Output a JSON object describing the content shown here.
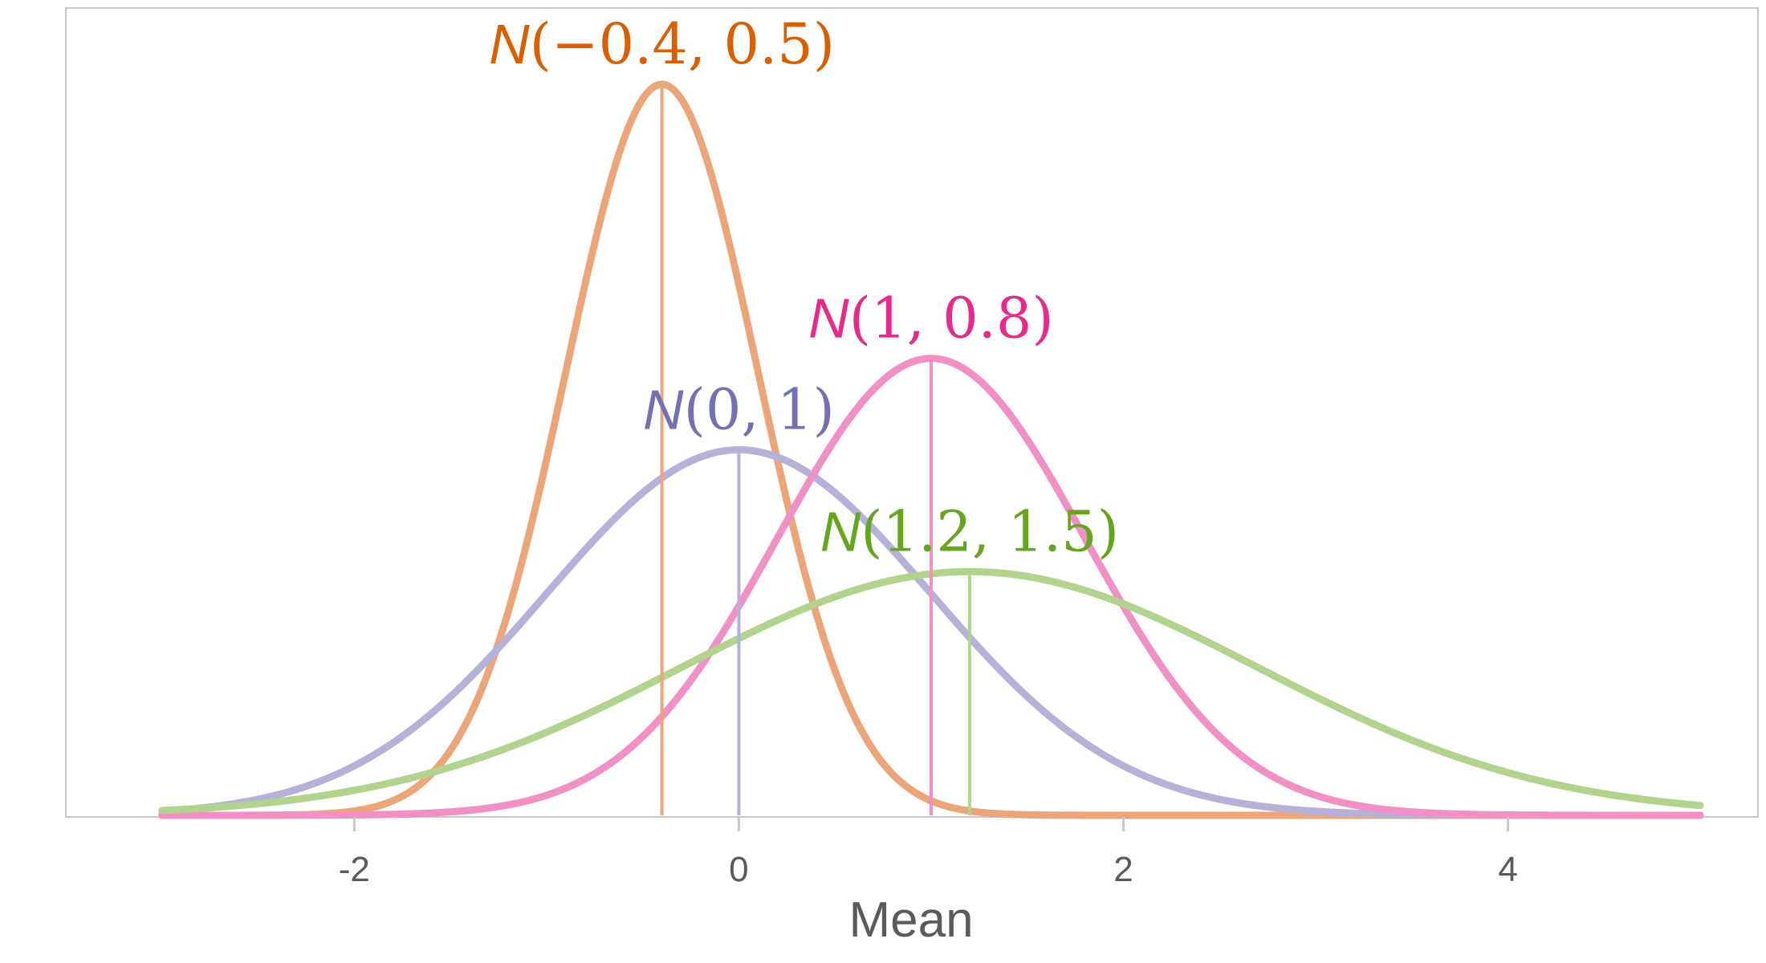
{
  "chart_data": {
    "type": "line",
    "xlabel": "Mean",
    "ylabel": "",
    "xlim": [
      -3.5,
      5.3
    ],
    "xticks": [
      -2,
      0,
      2,
      4
    ],
    "x_tick_labels": [
      "-2",
      "0",
      "2",
      "4"
    ],
    "x_domain": [
      -3,
      5
    ],
    "grid": false,
    "legend": "none (labels drawn above each peak)",
    "series": [
      {
        "label": "N(−0.4, 0.5)",
        "letter": "N",
        "args": "(−0.4, 0.5)",
        "mean": -0.4,
        "sd": 0.5,
        "line_color": "#EBA579",
        "label_color": "#D95F02"
      },
      {
        "label": "N(0, 1)",
        "letter": "N",
        "args": "(0, 1)",
        "mean": 0,
        "sd": 1,
        "line_color": "#B5B1D8",
        "label_color": "#7570B3"
      },
      {
        "label": "N(1, 0.8)",
        "letter": "N",
        "args": "(1, 0.8)",
        "mean": 1,
        "sd": 0.8,
        "line_color": "#F190C4",
        "label_color": "#E7298A"
      },
      {
        "label": "N(1.2, 1.5)",
        "letter": "N",
        "args": "(1.2, 1.5)",
        "mean": 1.2,
        "sd": 1.5,
        "line_color": "#B2D38D",
        "label_color": "#66A61E"
      }
    ]
  }
}
